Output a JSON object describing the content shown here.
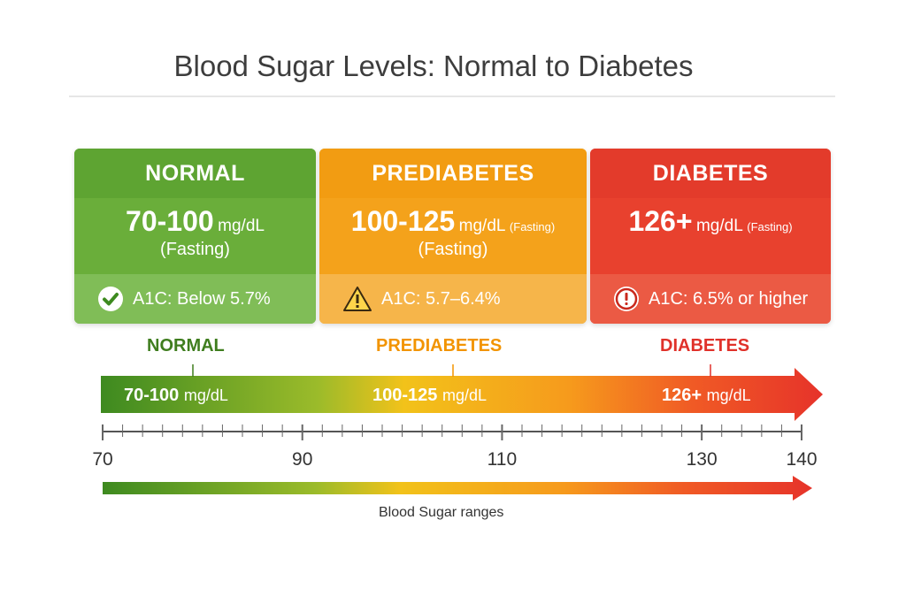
{
  "title": "Blood Sugar Levels: Normal to Diabetes",
  "cards": {
    "normal": {
      "heading": "NORMAL",
      "range": "70-100",
      "unit": "mg/dL",
      "fasting": "(Fasting)",
      "a1c": "A1C: Below 5.7%",
      "icon": "check-circle-icon",
      "color": "#6aae3a"
    },
    "prediabetes": {
      "heading": "PREDIABETES",
      "range": "100-125",
      "unit": "mg/dL",
      "unit_note": "(Fasting)",
      "fasting": "(Fasting)",
      "a1c": "A1C: 5.7–6.4%",
      "icon": "warning-triangle-icon",
      "color": "#f4a21b"
    },
    "diabetes": {
      "heading": "DIABETES",
      "range": "126+",
      "unit": "mg/dL",
      "unit_note": "(Fasting)",
      "a1c": "A1C: 6.5% or higher",
      "icon": "exclamation-circle-icon",
      "color": "#e8412e"
    }
  },
  "scale": {
    "zones": [
      {
        "label": "NORMAL",
        "range": "70-100",
        "unit": "mg/dL",
        "color": "#3f7d1e",
        "tick_value": 80
      },
      {
        "label": "PREDIABETES",
        "range": "100-125",
        "unit": "mg/dL",
        "color": "#f29400",
        "tick_value": 110
      },
      {
        "label": "DIABETES",
        "range": "126+",
        "unit": "mg/dL",
        "color": "#e0312a",
        "tick_value": 132
      }
    ],
    "axis": {
      "min": 70,
      "max": 140,
      "labels": [
        "70",
        "90",
        "110",
        "130",
        "140"
      ],
      "label_values": [
        70,
        90,
        110,
        130,
        140
      ],
      "minor_step": 2
    },
    "caption": "Blood Sugar ranges"
  }
}
